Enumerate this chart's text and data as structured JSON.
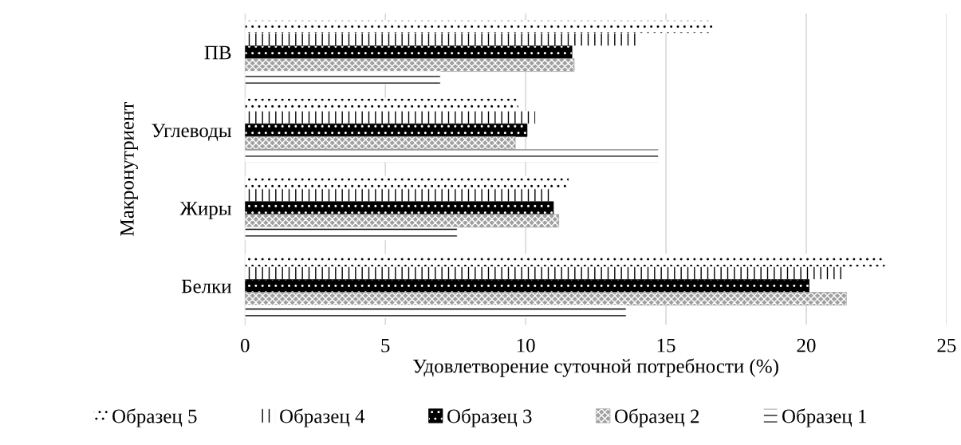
{
  "chart_data": {
    "type": "bar",
    "orientation": "horizontal",
    "xlabel": "Удовлетворение суточной потребности (%)",
    "ylabel": "Макронутриент",
    "categories": [
      "ПВ",
      "Углеводы",
      "Жиры",
      "Белки"
    ],
    "series": [
      {
        "name": "Образец 5",
        "color": "#ffffff",
        "values": [
          16.67,
          9.74,
          11.54,
          22.81
        ]
      },
      {
        "name": "Образец 4",
        "color": "#ffffff",
        "values": [
          14.02,
          10.35,
          10.99,
          21.31
        ]
      },
      {
        "name": "Образец 3",
        "color": "#000000",
        "values": [
          11.65,
          10.05,
          10.99,
          20.1
        ]
      },
      {
        "name": "Образец 2",
        "color": "#a0a0a0",
        "values": [
          11.73,
          9.63,
          11.18,
          21.43
        ]
      },
      {
        "name": "Образец 1",
        "color": "#ffffff",
        "values": [
          6.96,
          14.73,
          7.56,
          13.58
        ]
      }
    ],
    "xlim": [
      0,
      25
    ],
    "xticks": [
      0,
      5,
      10,
      15,
      20,
      25
    ],
    "grid": "x",
    "legend": "bottom"
  }
}
